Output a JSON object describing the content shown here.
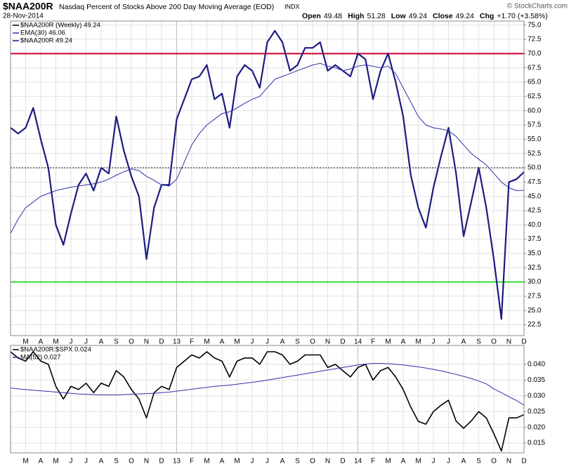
{
  "chart_data": [
    {
      "type": "line",
      "title": "$NAA200R",
      "subtitle": "Nasdaq Percent of Stocks Above 200 Day Moving Average (EOD)",
      "exchange": "INDX",
      "date": "28-Nov-2014",
      "source": "© StockCharts.com",
      "quote": [
        {
          "label": "Open",
          "value": "49.48"
        },
        {
          "label": "High",
          "value": "51.28"
        },
        {
          "label": "Low",
          "value": "49.24"
        },
        {
          "label": "Close",
          "value": "49.24"
        },
        {
          "label": "Chg",
          "value": "+1.70 (+3.58%)"
        }
      ],
      "legend": [
        "$NAA200R (Weekly) 49.24",
        "EMA(30) 46.06",
        "$NAA200R 49.24"
      ],
      "categories": [
        null,
        null,
        "M",
        null,
        "A",
        null,
        "M",
        null,
        "J",
        null,
        "J",
        null,
        "A",
        null,
        "S",
        null,
        "O",
        null,
        "N",
        null,
        "D",
        null,
        "13",
        null,
        "F",
        null,
        "M",
        null,
        "A",
        null,
        "M",
        null,
        "J",
        null,
        "J",
        null,
        "A",
        null,
        "S",
        null,
        "O",
        null,
        "N",
        null,
        "D",
        null,
        "14",
        null,
        "F",
        null,
        "M",
        null,
        "A",
        null,
        "M",
        null,
        "J",
        null,
        "J",
        null,
        "A",
        null,
        "S",
        null,
        "O",
        null,
        "N",
        null,
        "D"
      ],
      "series": [
        {
          "name": "$NAA200R 49.24",
          "color": "#1c1c80",
          "width": 2.2,
          "values": [
            57,
            56,
            57,
            60.5,
            55,
            50,
            40,
            36.5,
            42,
            47,
            49,
            46,
            50,
            49,
            59,
            53,
            48.5,
            45,
            34,
            43,
            47,
            47,
            58.5,
            62,
            65.5,
            66,
            68,
            62,
            63,
            57,
            66,
            68,
            67,
            64,
            72,
            74,
            72,
            67,
            68,
            71,
            71,
            72,
            67,
            68,
            67,
            66,
            70,
            69,
            62,
            67,
            70,
            65,
            59,
            48.7,
            43,
            39.5,
            46.5,
            52,
            57,
            49,
            38,
            44,
            50,
            43,
            34,
            23.5,
            47.5,
            48,
            49.24
          ]
        },
        {
          "name": "EMA(30) 46.06",
          "color": "#3030a8",
          "width": 1,
          "values": [
            38.5,
            41,
            43,
            44,
            45,
            45.5,
            46,
            46.3,
            46.6,
            46.8,
            47,
            47.2,
            47.5,
            48,
            48.7,
            49.3,
            49.8,
            49.5,
            48.5,
            47.8,
            47,
            46.8,
            48,
            51,
            54,
            56,
            57.5,
            58.5,
            59.5,
            59.8,
            60.5,
            61.3,
            62,
            62.5,
            64,
            65.5,
            66,
            66.5,
            67,
            67.5,
            68,
            68.3,
            67.8,
            67.5,
            67,
            67.3,
            67.8,
            68,
            67.8,
            67.5,
            67.8,
            66.5,
            64,
            61.5,
            59,
            57.5,
            57,
            56.8,
            56.5,
            55.5,
            54,
            52.5,
            51.5,
            50.5,
            49,
            47.5,
            46.5,
            46,
            46.06
          ]
        }
      ],
      "reference_lines": [
        {
          "value": 70,
          "color": "#cc0033"
        },
        {
          "value": 50,
          "color": "#000000",
          "dash": true
        },
        {
          "value": 30,
          "color": "#33dd33"
        }
      ],
      "ylim": [
        20.6,
        75.7
      ],
      "yticks": [
        22.5,
        {
          "value": 25,
          "label": "25.0"
        },
        27.5,
        {
          "value": 30,
          "label": "30.0"
        },
        32.5,
        {
          "value": 35,
          "label": "35.0"
        },
        37.5,
        {
          "value": 40,
          "label": "40.0"
        },
        42.5,
        {
          "value": 45,
          "label": "45.0"
        },
        47.5,
        {
          "value": 50,
          "label": "50.0"
        },
        52.5,
        {
          "value": 55,
          "label": "55.0"
        },
        57.5,
        {
          "value": 60,
          "label": "60.0"
        },
        62.5,
        {
          "value": 65,
          "label": "65.0"
        },
        67.5,
        {
          "value": 70,
          "label": "70.0"
        },
        72.5,
        {
          "value": 75,
          "label": "75.0"
        }
      ],
      "grid": true
    },
    {
      "type": "line",
      "legend": [
        "$NAA200R:$SPX 0.024",
        "MA(52) 0.027"
      ],
      "categories": [
        null,
        null,
        "M",
        null,
        "A",
        null,
        "M",
        null,
        "J",
        null,
        "J",
        null,
        "A",
        null,
        "S",
        null,
        "O",
        null,
        "N",
        null,
        "D",
        null,
        "13",
        null,
        "F",
        null,
        "M",
        null,
        "A",
        null,
        "M",
        null,
        "J",
        null,
        "J",
        null,
        "A",
        null,
        "S",
        null,
        "O",
        null,
        "N",
        null,
        "D",
        null,
        "14",
        null,
        "F",
        null,
        "M",
        null,
        "A",
        null,
        "M",
        null,
        "J",
        null,
        "J",
        null,
        "A",
        null,
        "S",
        null,
        "O",
        null,
        "N",
        null,
        "D"
      ],
      "series": [
        {
          "name": "$NAA200R:$SPX 0.024",
          "color": "#000000",
          "width": 1.6,
          "values": [
            0.044,
            0.042,
            0.041,
            0.044,
            0.041,
            0.04,
            0.033,
            0.029,
            0.033,
            0.032,
            0.034,
            0.031,
            0.034,
            0.033,
            0.038,
            0.036,
            0.032,
            0.029,
            0.023,
            0.031,
            0.033,
            0.032,
            0.039,
            0.041,
            0.043,
            0.042,
            0.044,
            0.042,
            0.041,
            0.036,
            0.041,
            0.042,
            0.042,
            0.04,
            0.044,
            0.044,
            0.043,
            0.04,
            0.041,
            0.043,
            0.043,
            0.043,
            0.039,
            0.04,
            0.038,
            0.036,
            0.039,
            0.04,
            0.035,
            0.038,
            0.039,
            0.036,
            0.032,
            0.0264,
            0.0219,
            0.021,
            0.025,
            0.027,
            0.0286,
            0.022,
            0.0197,
            0.022,
            0.025,
            0.023,
            0.018,
            0.0125,
            0.023,
            0.023,
            0.024
          ]
        },
        {
          "name": "MA(52) 0.027",
          "color": "#3030a8",
          "width": 1,
          "values": [
            0.0325,
            0.0322,
            0.032,
            0.0318,
            0.0316,
            0.0314,
            0.0312,
            0.031,
            0.0308,
            0.0306,
            0.0305,
            0.0304,
            0.0303,
            0.0303,
            0.0303,
            0.0304,
            0.0305,
            0.0306,
            0.0307,
            0.0308,
            0.031,
            0.0312,
            0.0315,
            0.0318,
            0.0321,
            0.0324,
            0.0327,
            0.033,
            0.0332,
            0.0334,
            0.0337,
            0.034,
            0.0343,
            0.0346,
            0.035,
            0.0354,
            0.0358,
            0.0362,
            0.0366,
            0.037,
            0.0374,
            0.0378,
            0.0382,
            0.0386,
            0.039,
            0.0394,
            0.0398,
            0.0401,
            0.0403,
            0.0403,
            0.0402,
            0.04,
            0.0398,
            0.0395,
            0.0392,
            0.0388,
            0.0384,
            0.0379,
            0.0374,
            0.0368,
            0.0362,
            0.0355,
            0.0347,
            0.0338,
            0.0322,
            0.031,
            0.0297,
            0.0285,
            0.027
          ]
        }
      ],
      "ylim": [
        0.0119,
        0.046
      ],
      "yticks": [
        0.015,
        {
          "value": 0.02,
          "label": "0.020"
        },
        0.025,
        {
          "value": 0.03,
          "label": "0.030"
        },
        0.035,
        {
          "value": 0.04,
          "label": "0.040"
        }
      ],
      "grid": true
    }
  ]
}
